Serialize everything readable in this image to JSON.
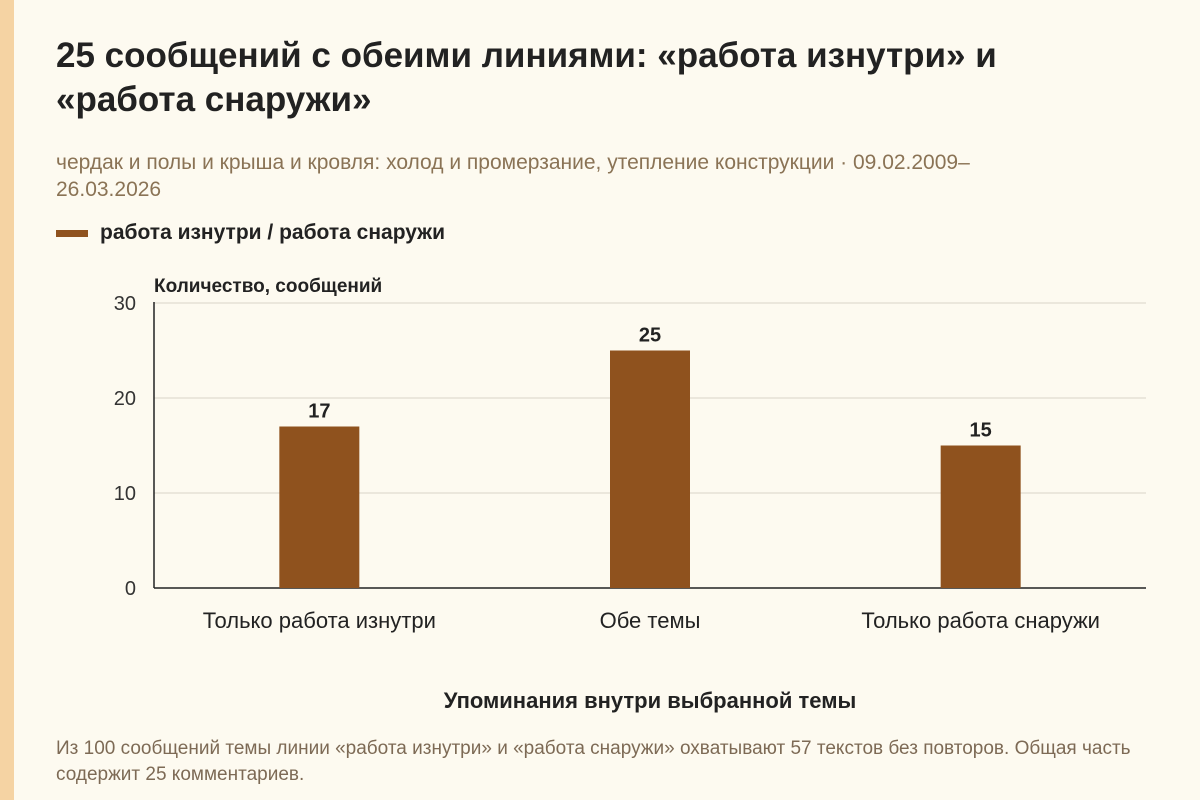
{
  "title": "25 сообщений с обеими линиями: «работа изнутри» и «работа снаружи»",
  "subtitle": "чердак и полы и крыша и кровля: холод и промерзание, утепление конструкции · 09.02.2009–26.03.2026",
  "legend": {
    "label": "работа изнутри / работа снаружи",
    "color": "#8f521e"
  },
  "footnote": "Из 100 сообщений темы линии «работа изнутри» и «работа снаружи» охватывают 57 текстов без повторов. Общая часть содержит 25 комментариев.",
  "colors": {
    "background": "#fdfaf0",
    "accent_strip": "#f5d3a3",
    "bar": "#8f521e"
  },
  "chart_data": {
    "type": "bar",
    "categories": [
      "Только работа изнутри",
      "Обе темы",
      "Только работа снаружи"
    ],
    "series": [
      {
        "name": "работа изнутри / работа снаружи",
        "values": [
          17,
          25,
          15
        ]
      }
    ],
    "ylabel": "Количество, сообщений",
    "xlabel": "Упоминания внутри выбранной темы",
    "ylim": [
      0,
      30
    ],
    "yticks": [
      0,
      10,
      20,
      30
    ],
    "grid": true,
    "legend_position": "top-left"
  }
}
